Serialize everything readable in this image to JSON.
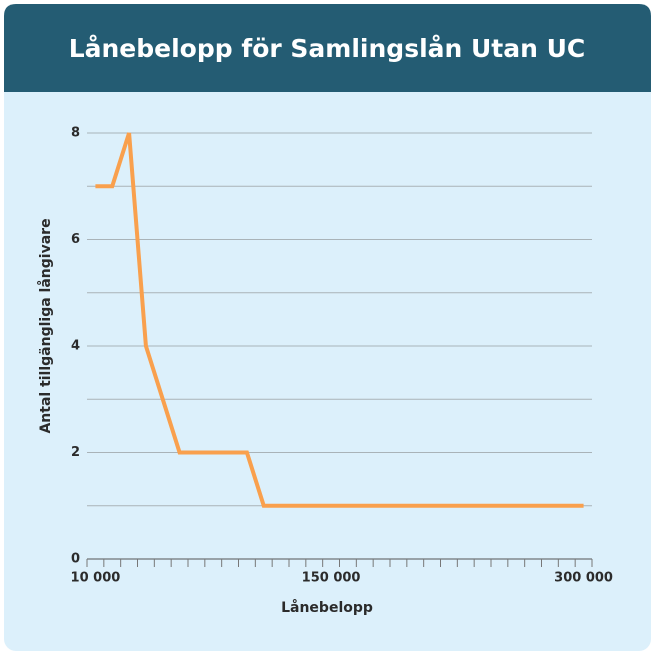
{
  "chart_data": {
    "type": "line",
    "title": "Lånebelopp för Samlingslån Utan UC",
    "x_label": "Lånebelopp",
    "y_label": "Antal tillgängliga långivare",
    "categories": [
      "10 000",
      null,
      null,
      null,
      null,
      null,
      null,
      null,
      null,
      null,
      null,
      null,
      null,
      null,
      "150 000",
      null,
      null,
      null,
      null,
      null,
      null,
      null,
      null,
      null,
      null,
      null,
      null,
      null,
      null,
      "300 000"
    ],
    "series": [
      {
        "name": "Antal tillgängliga långivare",
        "color": "#f9a04d",
        "values": [
          7,
          7,
          8,
          4,
          3,
          2,
          2,
          2,
          2,
          2,
          1,
          1,
          1,
          1,
          1,
          1,
          1,
          1,
          1,
          1,
          1,
          1,
          1,
          1,
          1,
          1,
          1,
          1,
          1,
          1
        ]
      }
    ],
    "ylim": [
      0,
      8
    ],
    "yticks": [
      0,
      2,
      4,
      6,
      8
    ],
    "minor_yticks": [
      1,
      3,
      5,
      7
    ],
    "grid": true
  }
}
